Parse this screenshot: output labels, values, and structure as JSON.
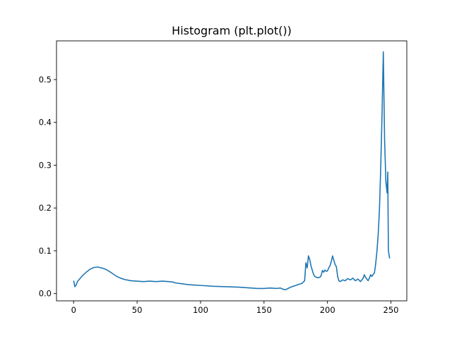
{
  "chart_data": {
    "type": "line",
    "title": "Histogram (plt.plot())",
    "xlabel": "",
    "ylabel": "",
    "xlim": [
      -13.5,
      262.5
    ],
    "ylim": [
      -0.017,
      0.5905
    ],
    "xticks": [
      0,
      50,
      100,
      150,
      200,
      250
    ],
    "yticks": [
      0.0,
      0.1,
      0.2,
      0.3,
      0.4,
      0.5
    ],
    "ytick_labels": [
      "0.0",
      "0.1",
      "0.2",
      "0.3",
      "0.4",
      "0.5"
    ],
    "grid": false,
    "series_color": "#1f77b4",
    "series": [
      {
        "points": [
          [
            0,
            0.03
          ],
          [
            1,
            0.016
          ],
          [
            2,
            0.02
          ],
          [
            3,
            0.028
          ],
          [
            5,
            0.035
          ],
          [
            7,
            0.042
          ],
          [
            10,
            0.05
          ],
          [
            13,
            0.057
          ],
          [
            16,
            0.061
          ],
          [
            19,
            0.062
          ],
          [
            22,
            0.06
          ],
          [
            25,
            0.057
          ],
          [
            28,
            0.052
          ],
          [
            31,
            0.046
          ],
          [
            34,
            0.04
          ],
          [
            37,
            0.036
          ],
          [
            40,
            0.033
          ],
          [
            45,
            0.03
          ],
          [
            50,
            0.029
          ],
          [
            55,
            0.028
          ],
          [
            60,
            0.029
          ],
          [
            65,
            0.028
          ],
          [
            70,
            0.029
          ],
          [
            75,
            0.028
          ],
          [
            78,
            0.027
          ],
          [
            80,
            0.025
          ],
          [
            85,
            0.023
          ],
          [
            90,
            0.021
          ],
          [
            95,
            0.02
          ],
          [
            100,
            0.019
          ],
          [
            110,
            0.017
          ],
          [
            120,
            0.016
          ],
          [
            130,
            0.015
          ],
          [
            140,
            0.013
          ],
          [
            145,
            0.012
          ],
          [
            150,
            0.012
          ],
          [
            155,
            0.013
          ],
          [
            160,
            0.012
          ],
          [
            163,
            0.013
          ],
          [
            165,
            0.01
          ],
          [
            167,
            0.009
          ],
          [
            169,
            0.012
          ],
          [
            171,
            0.015
          ],
          [
            174,
            0.018
          ],
          [
            177,
            0.021
          ],
          [
            180,
            0.024
          ],
          [
            182,
            0.03
          ],
          [
            183,
            0.072
          ],
          [
            184,
            0.06
          ],
          [
            185,
            0.088
          ],
          [
            186,
            0.08
          ],
          [
            187,
            0.065
          ],
          [
            188,
            0.055
          ],
          [
            189,
            0.045
          ],
          [
            190,
            0.04
          ],
          [
            192,
            0.037
          ],
          [
            194,
            0.038
          ],
          [
            195,
            0.042
          ],
          [
            196,
            0.054
          ],
          [
            197,
            0.05
          ],
          [
            198,
            0.055
          ],
          [
            199,
            0.052
          ],
          [
            200,
            0.053
          ],
          [
            201,
            0.06
          ],
          [
            202,
            0.065
          ],
          [
            203,
            0.075
          ],
          [
            204,
            0.088
          ],
          [
            205,
            0.078
          ],
          [
            206,
            0.068
          ],
          [
            207,
            0.063
          ],
          [
            208,
            0.04
          ],
          [
            209,
            0.03
          ],
          [
            210,
            0.028
          ],
          [
            212,
            0.032
          ],
          [
            214,
            0.03
          ],
          [
            216,
            0.035
          ],
          [
            218,
            0.032
          ],
          [
            220,
            0.036
          ],
          [
            222,
            0.03
          ],
          [
            224,
            0.034
          ],
          [
            226,
            0.028
          ],
          [
            228,
            0.035
          ],
          [
            229,
            0.044
          ],
          [
            230,
            0.038
          ],
          [
            232,
            0.03
          ],
          [
            233,
            0.036
          ],
          [
            234,
            0.044
          ],
          [
            235,
            0.04
          ],
          [
            236,
            0.045
          ],
          [
            237,
            0.048
          ],
          [
            238,
            0.07
          ],
          [
            239,
            0.1
          ],
          [
            240,
            0.14
          ],
          [
            241,
            0.2
          ],
          [
            242,
            0.3
          ],
          [
            243,
            0.42
          ],
          [
            244,
            0.565
          ],
          [
            245,
            0.36
          ],
          [
            246,
            0.262
          ],
          [
            247,
            0.235
          ],
          [
            247.5,
            0.284
          ],
          [
            248,
            0.1
          ],
          [
            249,
            0.082
          ]
        ]
      }
    ]
  }
}
